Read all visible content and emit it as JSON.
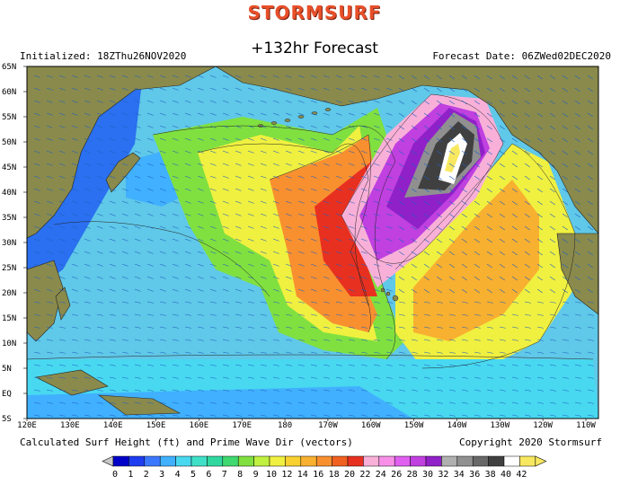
{
  "header": {
    "brand": "STORMSURF",
    "title": "+132hr Forecast",
    "initialized": "Initialized: 18ZThu26NOV2020",
    "forecast_date": "Forecast Date: 06ZWed02DEC2020"
  },
  "footer": {
    "caption": "Calculated Surf Height (ft) and Prime Wave Dir (vectors)",
    "copyright": "Copyright 2020 Stormsurf"
  },
  "map": {
    "lat_labels": [
      "65N",
      "60N",
      "55N",
      "50N",
      "45N",
      "40N",
      "35N",
      "30N",
      "25N",
      "20N",
      "15N",
      "10N",
      "5N",
      "EQ",
      "5S"
    ],
    "lon_labels": [
      "120E",
      "130E",
      "140E",
      "150E",
      "160E",
      "170E",
      "180",
      "170W",
      "160W",
      "150W",
      "140W",
      "130W",
      "120W",
      "110W"
    ],
    "colors": {
      "land": "#8a8a4c",
      "ocean_deep": "#0a14c8"
    }
  },
  "legend": {
    "values": [
      "0",
      "1",
      "2",
      "3",
      "4",
      "5",
      "6",
      "7",
      "8",
      "9",
      "10",
      "12",
      "14",
      "16",
      "18",
      "20",
      "22",
      "24",
      "26",
      "28",
      "30",
      "32",
      "34",
      "36",
      "38",
      "40",
      "42"
    ],
    "colors": [
      "#0000c8",
      "#1e3cf0",
      "#3c78ff",
      "#40b0ff",
      "#48d8f0",
      "#40e0c8",
      "#30d8a0",
      "#40d870",
      "#80e040",
      "#c0f040",
      "#f0f040",
      "#f8d030",
      "#f8b030",
      "#f89030",
      "#f06020",
      "#e83020",
      "#f8b0d8",
      "#f890e8",
      "#e060f0",
      "#c040e0",
      "#9020c8",
      "#b0b0b0",
      "#909090",
      "#686868",
      "#404040",
      "#ffffff",
      "#f8e860"
    ]
  }
}
